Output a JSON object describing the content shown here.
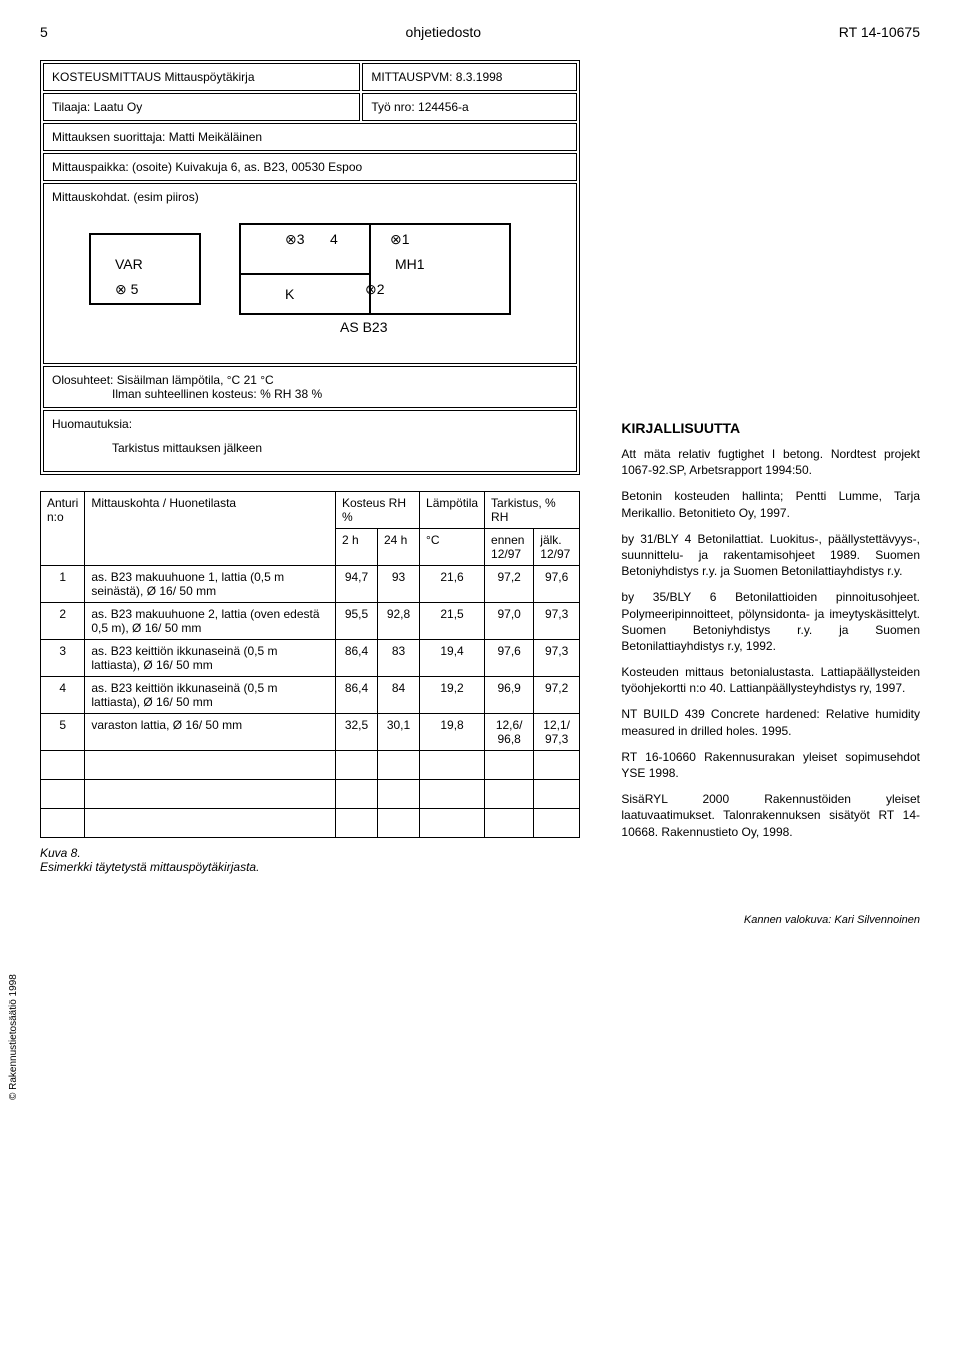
{
  "header": {
    "page_num": "5",
    "center": "ohjetiedosto",
    "code": "RT 14-10675"
  },
  "protocol": {
    "title": "KOSTEUSMITTAUS Mittauspöytäkirja",
    "date_label": "MITTAUSPVM: 8.3.1998",
    "client_label": "Tilaaja: Laatu Oy",
    "job_label": "Työ nro: 124456-a",
    "performer": "Mittauksen suorittaja:    Matti Meikäläinen",
    "place": "Mittauspaikka: (osoite)   Kuivakuja 6, as. B23, 00530 Espoo",
    "points": "Mittauskohdat. (esim piiros)",
    "cond_label1": "Olosuhteet: Sisäilman lämpötila, °C",
    "cond_val1": "21 °C",
    "cond_label2": "Ilman suhteellinen kosteus: % RH",
    "cond_val2": "38 %",
    "remarks_label": "Huomautuksia:",
    "remarks_text": "Tarkistus mittauksen jälkeen"
  },
  "sketch": {
    "var": "VAR",
    "p5": "5",
    "p3": "3",
    "p4": "4",
    "k": "K",
    "p1": "1",
    "p2": "2",
    "mh1": "MH1",
    "asb": "AS B23"
  },
  "table": {
    "h_anturi": "Anturi\nn:o",
    "h_kohta": "Mittauskohta / Huonetilasta",
    "h_kosteus": "Kosteus RH %",
    "h_lampo": "Lämpötila",
    "h_tarkistus": "Tarkistus, % RH",
    "h_2h": "2 h",
    "h_24h": "24 h",
    "h_c": "°C",
    "h_ennen": "ennen\n12/97",
    "h_jalk": "jälk.\n12/97",
    "rows": [
      {
        "n": "1",
        "desc": "as. B23 makuuhuone 1, lattia (0,5 m seinästä), Ø 16/ 50 mm",
        "c2h": "94,7",
        "c24h": "93",
        "temp": "21,6",
        "ennen": "97,2",
        "jalk": "97,6"
      },
      {
        "n": "2",
        "desc": "as. B23 makuuhuone 2, lattia (oven edestä 0,5 m), Ø 16/ 50 mm",
        "c2h": "95,5",
        "c24h": "92,8",
        "temp": "21,5",
        "ennen": "97,0",
        "jalk": "97,3"
      },
      {
        "n": "3",
        "desc": "as. B23 keittiön ikkunaseinä (0,5 m lattiasta), Ø 16/ 50 mm",
        "c2h": "86,4",
        "c24h": "83",
        "temp": "19,4",
        "ennen": "97,6",
        "jalk": "97,3"
      },
      {
        "n": "4",
        "desc": "as. B23 keittiön ikkunaseinä (0,5 m lattiasta), Ø 16/ 50 mm",
        "c2h": "86,4",
        "c24h": "84",
        "temp": "19,2",
        "ennen": "96,9",
        "jalk": "97,2"
      },
      {
        "n": "5",
        "desc": "varaston lattia, Ø 16/ 50 mm",
        "c2h": "32,5",
        "c24h": "30,1",
        "temp": "19,8",
        "ennen": "12,6/\n96,8",
        "jalk": "12,1/\n97,3"
      }
    ]
  },
  "caption": {
    "l1": "Kuva 8.",
    "l2": "Esimerkki täytetystä mittauspöytäkirjasta."
  },
  "biblio": {
    "title": "KIRJALLISUUTTA",
    "p1": "Att mäta relativ fugtighet I betong. Nordtest projekt 1067-92.SP, Arbetsrapport 1994:50.",
    "p2": "Betonin kosteuden hallinta; Pentti Lumme, Tarja Merikallio. Betonitieto Oy, 1997.",
    "p3": "by 31/BLY 4 Betonilattiat. Luokitus-, päällystettävyys-, suunnittelu- ja rakentamisohjeet 1989. Suomen Betoniyhdistys r.y. ja Suomen Betonilattiayhdistys r.y.",
    "p4": "by 35/BLY 6 Betonilattioiden pinnoitusohjeet. Polymeeripinnoitteet, pölynsidonta- ja imeytyskäsittelyt. Suomen Betoniyhdistys r.y. ja Suomen Betonilattiayhdistys r.y, 1992.",
    "p5": "Kosteuden mittaus betonialustasta. Lattiapäällysteiden työohjekortti n:o 40. Lattianpäällysteyhdistys ry, 1997.",
    "p6": "NT BUILD 439 Concrete hardened: Relative humidity measured in drilled holes. 1995.",
    "p7": "RT 16-10660 Rakennusurakan yleiset sopimusehdot YSE 1998.",
    "p8": "SisäRYL 2000 Rakennustöiden yleiset laatuvaatimukset. Talonrakennuksen sisätyöt RT 14-10668. Rakennustieto Oy, 1998."
  },
  "side": "© Rakennustietosäätiö 1998",
  "footer": "Kannen valokuva: Kari Silvennoinen"
}
